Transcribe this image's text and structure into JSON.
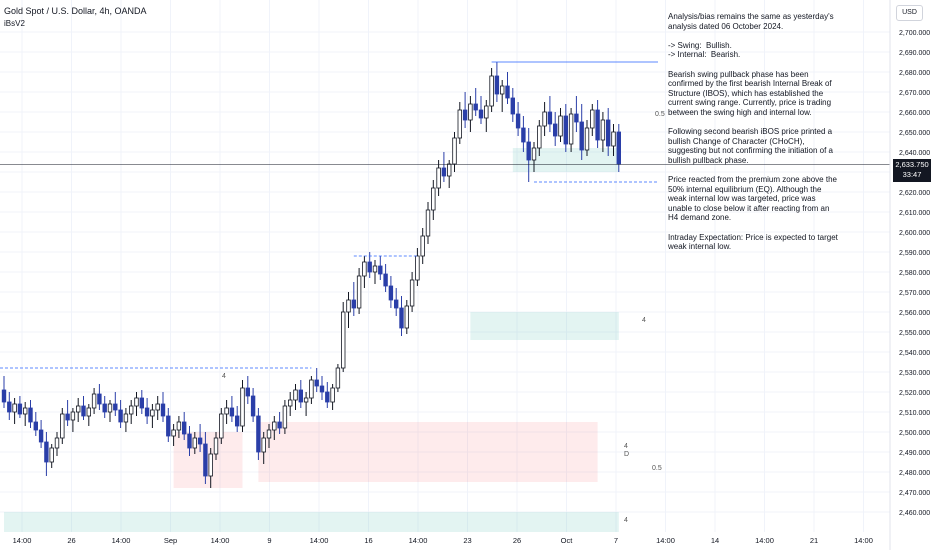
{
  "header": {
    "symbol_title": "Gold Spot / U.S. Dollar, 4h, OANDA",
    "indicator": "iBsV2",
    "currency": "USD"
  },
  "analysis": {
    "text": "Analysis/bias remains the same as yesterday's analysis dated 06 October 2024.\n\n-> Swing:  Bullish.\n-> Internal:  Bearish.\n\nBearish swing pullback phase has been confirmed by the first bearish Internal Break of Structure (IBOS), which has established the current swing range. Currently, price is trading between the swing high and internal low.\n\nFollowing second bearish iBOS price printed a bullish Change of Character (CHoCH), suggesting but not confirming the initiation of a bullish pullback phase.\n\nPrice reacted from the premium zone above the 50% internal equilibrium (EQ). Although the weak internal low was targeted, price was unable to close below it after reacting from an H4 demand zone.\n\nIntraday Expectation: Price is expected to target weak internal low."
  },
  "last_price": {
    "price": "2,633.750",
    "countdown": "33:47"
  },
  "colors": {
    "up": "#131722",
    "down": "#2a3ea8",
    "bg": "#ffffff",
    "grid": "#f0f3fa",
    "swing_line": "#2962ff"
  },
  "chart_data": {
    "type": "candlestick",
    "ylim": [
      2450,
      2710
    ],
    "yticks": [
      "2,460.000",
      "2,470.000",
      "2,480.000",
      "2,490.000",
      "2,500.000",
      "2,510.000",
      "2,520.000",
      "2,530.000",
      "2,540.000",
      "2,550.000",
      "2,560.000",
      "2,570.000",
      "2,580.000",
      "2,590.000",
      "2,600.000",
      "2,610.000",
      "2,620.000",
      "2,630.000",
      "2,640.000",
      "2,650.000",
      "2,660.000",
      "2,670.000",
      "2,680.000",
      "2,690.000",
      "2,700.000"
    ],
    "ytick_values": [
      2460,
      2470,
      2480,
      2490,
      2500,
      2510,
      2520,
      2530,
      2540,
      2550,
      2560,
      2570,
      2580,
      2590,
      2600,
      2610,
      2620,
      2630,
      2640,
      2650,
      2660,
      2670,
      2680,
      2690,
      2700
    ],
    "xticks": [
      "14:00",
      "26",
      "14:00",
      "Sep",
      "14:00",
      "9",
      "14:00",
      "16",
      "14:00",
      "23",
      "26",
      "Oct",
      "7",
      "14:00",
      "14",
      "14:00",
      "21",
      "14:00"
    ],
    "annotations": [
      "0.5",
      "0.5",
      "4",
      "4",
      "4",
      "4",
      "D"
    ],
    "candles": [
      [
        2521,
        2528,
        2512,
        2515
      ],
      [
        2515,
        2520,
        2506,
        2510
      ],
      [
        2510,
        2517,
        2504,
        2514
      ],
      [
        2514,
        2518,
        2507,
        2509
      ],
      [
        2509,
        2515,
        2503,
        2512
      ],
      [
        2512,
        2516,
        2502,
        2505
      ],
      [
        2505,
        2510,
        2498,
        2501
      ],
      [
        2501,
        2506,
        2492,
        2495
      ],
      [
        2495,
        2500,
        2478,
        2485
      ],
      [
        2485,
        2494,
        2482,
        2492
      ],
      [
        2492,
        2500,
        2488,
        2497
      ],
      [
        2497,
        2512,
        2494,
        2509
      ],
      [
        2509,
        2516,
        2503,
        2506
      ],
      [
        2506,
        2512,
        2500,
        2510
      ],
      [
        2510,
        2517,
        2505,
        2513
      ],
      [
        2513,
        2518,
        2506,
        2508
      ],
      [
        2508,
        2514,
        2503,
        2512
      ],
      [
        2512,
        2522,
        2509,
        2519
      ],
      [
        2519,
        2524,
        2511,
        2514
      ],
      [
        2514,
        2518,
        2507,
        2510
      ],
      [
        2510,
        2516,
        2505,
        2514
      ],
      [
        2514,
        2520,
        2508,
        2511
      ],
      [
        2511,
        2516,
        2502,
        2505
      ],
      [
        2505,
        2512,
        2500,
        2509
      ],
      [
        2509,
        2516,
        2504,
        2513
      ],
      [
        2513,
        2520,
        2508,
        2517
      ],
      [
        2517,
        2521,
        2509,
        2512
      ],
      [
        2512,
        2517,
        2504,
        2508
      ],
      [
        2508,
        2514,
        2502,
        2511
      ],
      [
        2511,
        2518,
        2506,
        2514
      ],
      [
        2514,
        2520,
        2505,
        2508
      ],
      [
        2508,
        2512,
        2495,
        2498
      ],
      [
        2498,
        2504,
        2493,
        2501
      ],
      [
        2501,
        2508,
        2497,
        2505
      ],
      [
        2505,
        2510,
        2496,
        2499
      ],
      [
        2499,
        2503,
        2488,
        2492
      ],
      [
        2492,
        2500,
        2489,
        2497
      ],
      [
        2497,
        2504,
        2490,
        2494
      ],
      [
        2494,
        2500,
        2474,
        2478
      ],
      [
        2478,
        2492,
        2472,
        2489
      ],
      [
        2489,
        2500,
        2486,
        2497
      ],
      [
        2497,
        2512,
        2494,
        2509
      ],
      [
        2509,
        2516,
        2504,
        2512
      ],
      [
        2512,
        2518,
        2505,
        2508
      ],
      [
        2508,
        2513,
        2500,
        2503
      ],
      [
        2503,
        2526,
        2500,
        2522
      ],
      [
        2522,
        2528,
        2514,
        2518
      ],
      [
        2518,
        2522,
        2505,
        2508
      ],
      [
        2508,
        2512,
        2486,
        2490
      ],
      [
        2490,
        2500,
        2484,
        2497
      ],
      [
        2497,
        2504,
        2492,
        2501
      ],
      [
        2501,
        2508,
        2496,
        2505
      ],
      [
        2505,
        2510,
        2499,
        2502
      ],
      [
        2502,
        2516,
        2499,
        2513
      ],
      [
        2513,
        2520,
        2508,
        2516
      ],
      [
        2516,
        2524,
        2511,
        2521
      ],
      [
        2521,
        2526,
        2512,
        2515
      ],
      [
        2515,
        2520,
        2508,
        2517
      ],
      [
        2517,
        2528,
        2514,
        2526
      ],
      [
        2526,
        2532,
        2520,
        2523
      ],
      [
        2523,
        2528,
        2516,
        2520
      ],
      [
        2520,
        2525,
        2512,
        2515
      ],
      [
        2515,
        2524,
        2511,
        2522
      ],
      [
        2522,
        2534,
        2520,
        2532
      ],
      [
        2532,
        2565,
        2530,
        2560
      ],
      [
        2560,
        2570,
        2552,
        2566
      ],
      [
        2566,
        2575,
        2558,
        2562
      ],
      [
        2562,
        2582,
        2559,
        2578
      ],
      [
        2578,
        2588,
        2572,
        2585
      ],
      [
        2585,
        2590,
        2577,
        2580
      ],
      [
        2580,
        2586,
        2574,
        2583
      ],
      [
        2583,
        2588,
        2576,
        2579
      ],
      [
        2579,
        2584,
        2570,
        2573
      ],
      [
        2573,
        2578,
        2562,
        2566
      ],
      [
        2566,
        2572,
        2558,
        2562
      ],
      [
        2562,
        2568,
        2548,
        2552
      ],
      [
        2552,
        2566,
        2549,
        2563
      ],
      [
        2563,
        2580,
        2560,
        2576
      ],
      [
        2576,
        2592,
        2573,
        2588
      ],
      [
        2588,
        2602,
        2584,
        2598
      ],
      [
        2598,
        2615,
        2594,
        2611
      ],
      [
        2611,
        2626,
        2606,
        2622
      ],
      [
        2622,
        2636,
        2618,
        2632
      ],
      [
        2632,
        2640,
        2625,
        2628
      ],
      [
        2628,
        2636,
        2622,
        2634
      ],
      [
        2634,
        2650,
        2630,
        2647
      ],
      [
        2647,
        2665,
        2644,
        2661
      ],
      [
        2661,
        2670,
        2652,
        2656
      ],
      [
        2656,
        2668,
        2650,
        2664
      ],
      [
        2664,
        2672,
        2658,
        2661
      ],
      [
        2661,
        2668,
        2654,
        2657
      ],
      [
        2657,
        2666,
        2650,
        2663
      ],
      [
        2663,
        2682,
        2660,
        2678
      ],
      [
        2678,
        2685,
        2665,
        2669
      ],
      [
        2669,
        2676,
        2660,
        2673
      ],
      [
        2673,
        2680,
        2664,
        2667
      ],
      [
        2667,
        2672,
        2655,
        2659
      ],
      [
        2659,
        2665,
        2648,
        2652
      ],
      [
        2652,
        2658,
        2640,
        2645
      ],
      [
        2645,
        2652,
        2625,
        2636
      ],
      [
        2636,
        2645,
        2630,
        2642
      ],
      [
        2642,
        2656,
        2638,
        2653
      ],
      [
        2653,
        2665,
        2648,
        2660
      ],
      [
        2660,
        2668,
        2650,
        2654
      ],
      [
        2654,
        2660,
        2643,
        2648
      ],
      [
        2648,
        2662,
        2645,
        2658
      ],
      [
        2658,
        2664,
        2640,
        2644
      ],
      [
        2644,
        2662,
        2640,
        2659
      ],
      [
        2659,
        2668,
        2650,
        2655
      ],
      [
        2655,
        2664,
        2636,
        2641
      ],
      [
        2641,
        2656,
        2638,
        2652
      ],
      [
        2652,
        2664,
        2648,
        2661
      ],
      [
        2661,
        2666,
        2642,
        2646
      ],
      [
        2646,
        2660,
        2640,
        2656
      ],
      [
        2656,
        2662,
        2638,
        2643
      ],
      [
        2643,
        2654,
        2638,
        2650
      ],
      [
        2650,
        2654,
        2630,
        2634
      ]
    ],
    "zones": [
      {
        "type": "demand",
        "from": 0,
        "to": 116,
        "low": 2450,
        "high": 2460
      },
      {
        "type": "demand",
        "from": 88,
        "to": 116,
        "low": 2546,
        "high": 2560
      },
      {
        "type": "demand",
        "from": 96,
        "to": 116,
        "low": 2630,
        "high": 2642
      },
      {
        "type": "supply",
        "from": 48,
        "to": 112,
        "low": 2475,
        "high": 2505
      },
      {
        "type": "supply",
        "from": 32,
        "to": 45,
        "low": 2472,
        "high": 2500
      }
    ]
  }
}
